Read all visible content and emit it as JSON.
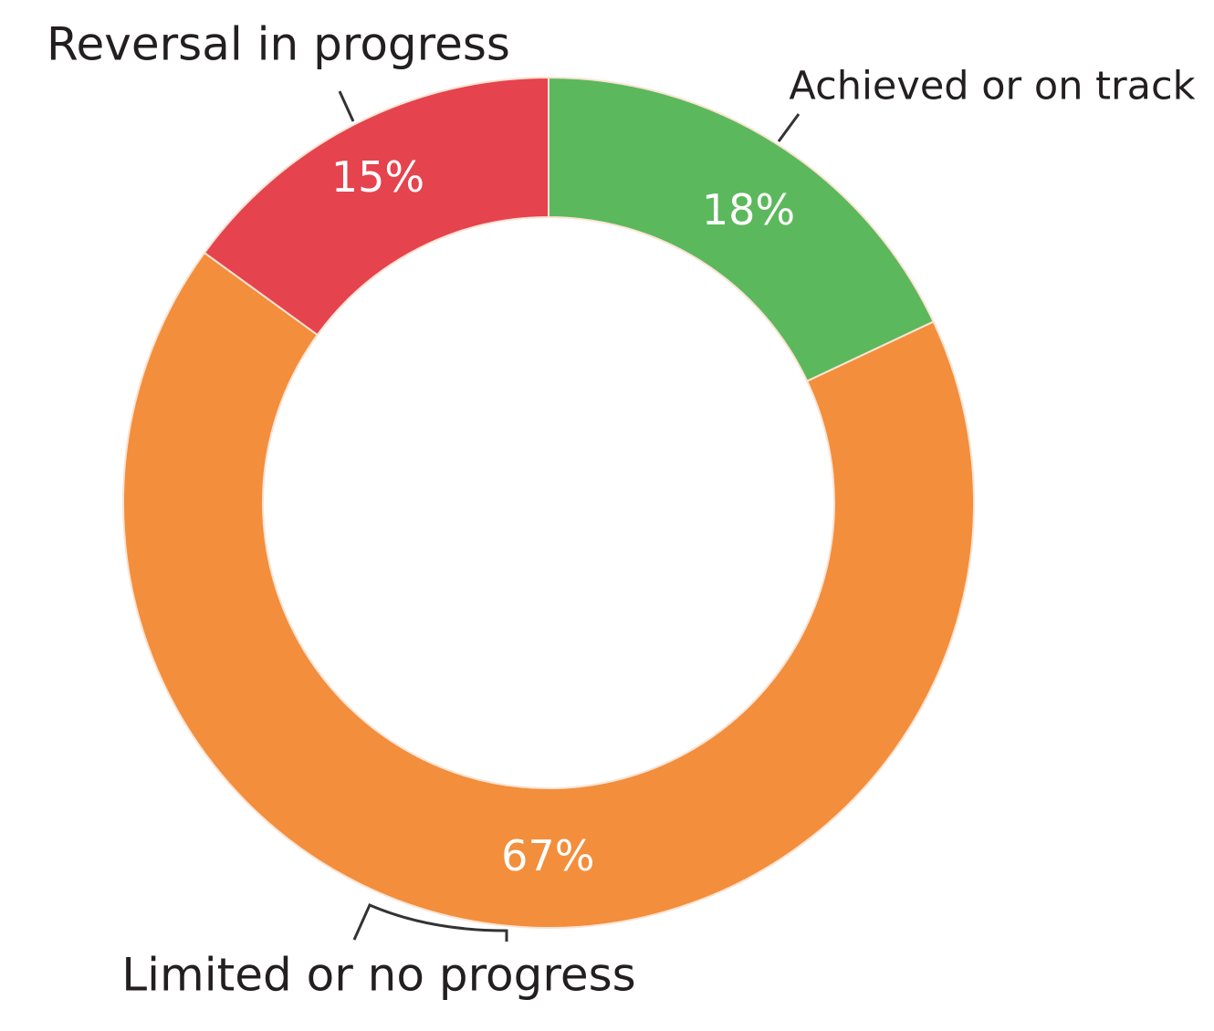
{
  "chart_data": {
    "type": "donut",
    "categories": [
      "Achieved or on track",
      "Limited or no progress",
      "Reversal in progress"
    ],
    "values": [
      18,
      67,
      15
    ],
    "value_labels": [
      "18%",
      "67%",
      "15%"
    ],
    "colors": [
      "#5cb85c",
      "#f28e3c",
      "#e5434e"
    ]
  }
}
